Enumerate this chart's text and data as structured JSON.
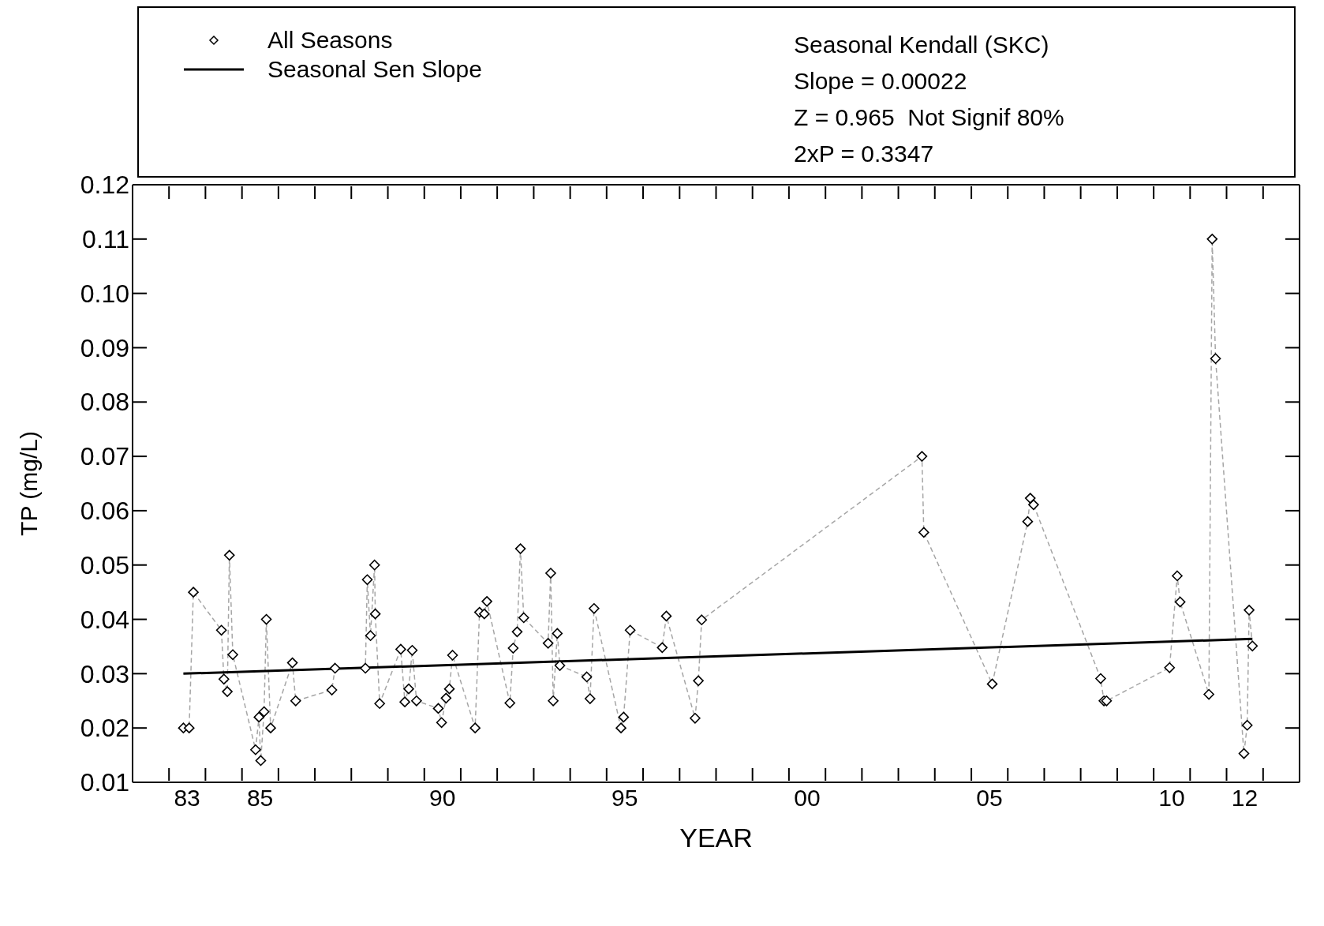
{
  "chart_data": {
    "type": "scatter",
    "xlabel": "YEAR",
    "ylabel": "TP (mg/L)",
    "xlim": [
      "1982-01-01",
      "2014-01-01"
    ],
    "ylim": [
      0.01,
      0.12
    ],
    "xticks": [
      {
        "value": "1982",
        "label": null
      },
      {
        "value": "1983",
        "label": null
      },
      {
        "value": "1984",
        "label": null
      },
      {
        "value": "1985",
        "label": null
      },
      {
        "value": "1986",
        "label": null
      },
      {
        "value": "1987",
        "label": null
      },
      {
        "value": "1988",
        "label": null
      },
      {
        "value": "1989",
        "label": null
      },
      {
        "value": "1990",
        "label": null
      },
      {
        "value": "1991",
        "label": null
      },
      {
        "value": "1992",
        "label": null
      },
      {
        "value": "1993",
        "label": null
      },
      {
        "value": "1994",
        "label": null
      },
      {
        "value": "1995",
        "label": null
      },
      {
        "value": "1996",
        "label": null
      },
      {
        "value": "1997",
        "label": null
      },
      {
        "value": "1998",
        "label": null
      },
      {
        "value": "1999",
        "label": null
      },
      {
        "value": "2000",
        "label": null
      },
      {
        "value": "2001",
        "label": null
      },
      {
        "value": "2002",
        "label": null
      },
      {
        "value": "2003",
        "label": null
      },
      {
        "value": "2004",
        "label": null
      },
      {
        "value": "2005",
        "label": null
      },
      {
        "value": "2006",
        "label": null
      },
      {
        "value": "2007",
        "label": null
      },
      {
        "value": "2008",
        "label": null
      },
      {
        "value": "2009",
        "label": null
      },
      {
        "value": "2010",
        "label": null
      },
      {
        "value": "2011",
        "label": null
      },
      {
        "value": "2012",
        "label": null
      },
      {
        "value": "2013",
        "label": null
      },
      {
        "value": "2014",
        "label": null
      },
      {
        "value": "1983-07-01",
        "label": "83"
      },
      {
        "value": "1985-07-01",
        "label": "85"
      },
      {
        "value": "1990-07-01",
        "label": "90"
      },
      {
        "value": "1995-07-01",
        "label": "95"
      },
      {
        "value": "2000-07-01",
        "label": "00"
      },
      {
        "value": "2005-07-01",
        "label": "05"
      },
      {
        "value": "2010-07-01",
        "label": "10"
      },
      {
        "value": "2012-07-01",
        "label": "12"
      }
    ],
    "yticks": [
      {
        "value": 0.01,
        "label": "0.01"
      },
      {
        "value": 0.02,
        "label": "0.02"
      },
      {
        "value": 0.03,
        "label": "0.03"
      },
      {
        "value": 0.04,
        "label": "0.04"
      },
      {
        "value": 0.05,
        "label": "0.05"
      },
      {
        "value": 0.06,
        "label": "0.06"
      },
      {
        "value": 0.07,
        "label": "0.07"
      },
      {
        "value": 0.08,
        "label": "0.08"
      },
      {
        "value": 0.09,
        "label": "0.09"
      },
      {
        "value": 0.1,
        "label": "0.10"
      },
      {
        "value": 0.11,
        "label": "0.11"
      },
      {
        "value": 0.12,
        "label": "0.12"
      }
    ],
    "legend": "top left",
    "annotations": [
      "Seasonal Kendall (SKC)",
      "Slope = 0.00022",
      "Z = 0.965  Not Signif 80%",
      "2xP = 0.3347"
    ],
    "series": [
      {
        "type": "line",
        "color": "#a6a6a6",
        "line_style": "dashed",
        "marker": "none",
        "x": [
          "1983-05-25",
          "1983-07-22",
          "1983-09-02",
          "1984-06-09",
          "1984-07-04",
          "1984-08-07",
          "1984-08-28",
          "1984-10-01",
          "1985-05-17",
          "1985-06-20",
          "1985-07-08",
          "1985-08-10",
          "1985-09-02",
          "1985-10-15",
          "1986-05-21",
          "1986-06-23",
          "1987-06-20",
          "1987-07-22",
          "1988-05-21",
          "1988-06-09",
          "1988-07-11",
          "1988-08-21",
          "1988-08-28",
          "1988-10-11",
          "1989-05-10",
          "1989-06-20",
          "1989-07-29",
          "1989-09-02",
          "1989-10-15",
          "1990-05-21",
          "1990-06-23",
          "1990-08-07",
          "1990-09-09",
          "1990-10-11",
          "1991-05-25",
          "1991-07-08",
          "1991-08-25",
          "1991-09-20",
          "1992-05-07",
          "1992-06-09",
          "1992-07-19",
          "1992-08-21",
          "1992-09-23",
          "1993-05-25",
          "1993-06-20",
          "1993-07-15",
          "1993-08-25",
          "1993-09-20",
          "1994-06-16",
          "1994-07-19",
          "1994-08-28",
          "1995-05-25",
          "1995-06-20",
          "1995-08-25",
          "1996-07-11",
          "1996-08-21",
          "1997-06-05",
          "1997-07-08",
          "1997-08-10",
          "2003-08-25",
          "2003-09-13",
          "2005-07-29",
          "2006-07-19",
          "2006-08-14",
          "2006-09-16",
          "2008-07-19",
          "2008-08-21",
          "2008-09-16",
          "2010-06-09",
          "2010-08-25",
          "2010-09-23",
          "2011-07-08",
          "2011-08-10",
          "2011-09-13",
          "2012-06-23",
          "2012-07-26",
          "2012-08-14",
          "2012-09-16"
        ],
        "values": [
          0.02,
          0.02,
          0.045,
          0.038,
          0.029,
          0.0267,
          0.0518,
          0.0335,
          0.016,
          0.022,
          0.014,
          0.023,
          0.04,
          0.02,
          0.032,
          0.025,
          0.027,
          0.031,
          0.031,
          0.0473,
          0.037,
          0.05,
          0.041,
          0.0245,
          0.0345,
          0.0248,
          0.0272,
          0.0343,
          0.025,
          0.0236,
          0.021,
          0.0255,
          0.0272,
          0.0334,
          0.02,
          0.0413,
          0.041,
          0.0433,
          0.0246,
          0.0347,
          0.0377,
          0.053,
          0.0403,
          0.0356,
          0.0485,
          0.025,
          0.0374,
          0.0315,
          0.0294,
          0.0254,
          0.042,
          0.02,
          0.022,
          0.038,
          0.0348,
          0.0406,
          0.0218,
          0.0287,
          0.0399,
          0.07,
          0.056,
          0.0281,
          0.058,
          0.0623,
          0.0611,
          0.0291,
          0.025,
          0.025,
          0.0311,
          0.048,
          0.0432,
          0.0262,
          0.11,
          0.088,
          0.0153,
          0.0205,
          0.0417,
          0.0351
        ]
      },
      {
        "type": "scatter",
        "name": "All Seasons",
        "color": "#000000",
        "marker": "diamond",
        "x": [
          "1983-05-25",
          "1983-07-22",
          "1983-09-02",
          "1984-06-09",
          "1984-07-04",
          "1984-08-07",
          "1984-08-28",
          "1984-10-01",
          "1985-05-17",
          "1985-06-20",
          "1985-07-08",
          "1985-08-10",
          "1985-09-02",
          "1985-10-15",
          "1986-05-21",
          "1986-06-23",
          "1987-06-20",
          "1987-07-22",
          "1988-05-21",
          "1988-06-09",
          "1988-07-11",
          "1988-08-21",
          "1988-08-28",
          "1988-10-11",
          "1989-05-10",
          "1989-06-20",
          "1989-07-29",
          "1989-09-02",
          "1989-10-15",
          "1990-05-21",
          "1990-06-23",
          "1990-08-07",
          "1990-09-09",
          "1990-10-11",
          "1991-05-25",
          "1991-07-08",
          "1991-08-25",
          "1991-09-20",
          "1992-05-07",
          "1992-06-09",
          "1992-07-19",
          "1992-08-21",
          "1992-09-23",
          "1993-05-25",
          "1993-06-20",
          "1993-07-15",
          "1993-08-25",
          "1993-09-20",
          "1994-06-16",
          "1994-07-19",
          "1994-08-28",
          "1995-05-25",
          "1995-06-20",
          "1995-08-25",
          "1996-07-11",
          "1996-08-21",
          "1997-06-05",
          "1997-07-08",
          "1997-08-10",
          "2003-08-25",
          "2003-09-13",
          "2005-07-29",
          "2006-07-19",
          "2006-08-14",
          "2006-09-16",
          "2008-07-19",
          "2008-08-21",
          "2008-09-16",
          "2010-06-09",
          "2010-08-25",
          "2010-09-23",
          "2011-07-08",
          "2011-08-10",
          "2011-09-13",
          "2012-06-23",
          "2012-07-26",
          "2012-08-14",
          "2012-09-16"
        ],
        "values": [
          0.02,
          0.02,
          0.045,
          0.038,
          0.029,
          0.0267,
          0.0518,
          0.0335,
          0.016,
          0.022,
          0.014,
          0.023,
          0.04,
          0.02,
          0.032,
          0.025,
          0.027,
          0.031,
          0.031,
          0.0473,
          0.037,
          0.05,
          0.041,
          0.0245,
          0.0345,
          0.0248,
          0.0272,
          0.0343,
          0.025,
          0.0236,
          0.021,
          0.0255,
          0.0272,
          0.0334,
          0.02,
          0.0413,
          0.041,
          0.0433,
          0.0246,
          0.0347,
          0.0377,
          0.053,
          0.0403,
          0.0356,
          0.0485,
          0.025,
          0.0374,
          0.0315,
          0.0294,
          0.0254,
          0.042,
          0.02,
          0.022,
          0.038,
          0.0348,
          0.0406,
          0.0218,
          0.0287,
          0.0399,
          0.07,
          0.056,
          0.0281,
          0.058,
          0.0623,
          0.0611,
          0.0291,
          0.025,
          0.025,
          0.0311,
          0.048,
          0.0432,
          0.0262,
          0.11,
          0.088,
          0.0153,
          0.0205,
          0.0417,
          0.0351
        ]
      },
      {
        "type": "line",
        "name": "Seasonal Sen Slope",
        "color": "#000000",
        "line_style": "solid",
        "marker": "none",
        "x": [
          "1983-05-25",
          "2012-09-16"
        ],
        "values": [
          0.03,
          0.0364
        ]
      }
    ]
  }
}
